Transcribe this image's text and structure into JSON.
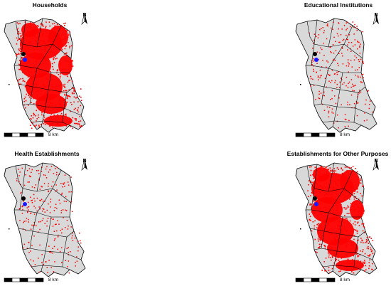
{
  "panels": [
    {
      "title": "Households",
      "coverage": "dense"
    },
    {
      "title": "Educational Institutions",
      "coverage": "network"
    },
    {
      "title": "Health Establishments",
      "coverage": "network"
    },
    {
      "title": "Establishments for Other Purposes",
      "coverage": "dense"
    }
  ],
  "north_label": "N",
  "scale": {
    "label": "8 km"
  },
  "colors": {
    "district_fill": "#d9d9d9",
    "district_stroke": "#000000",
    "points": "#ff0000",
    "marker_black": "#000000",
    "marker_blue": "#1a1aff"
  }
}
